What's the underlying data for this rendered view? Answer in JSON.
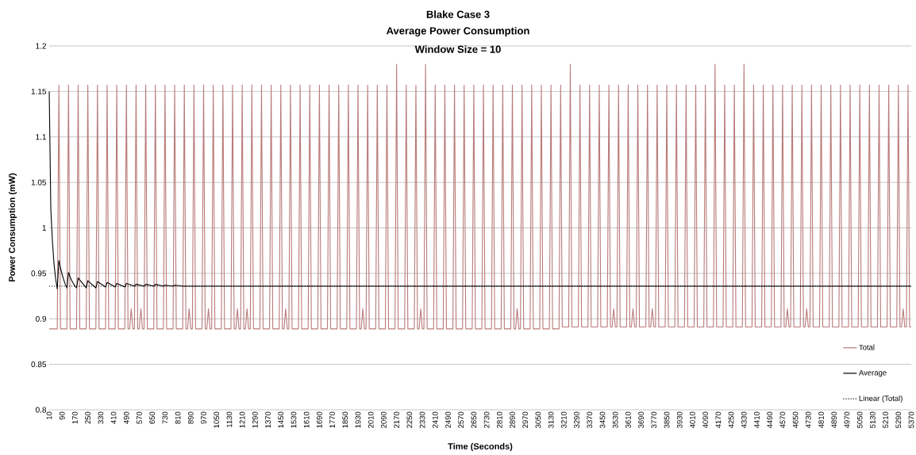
{
  "chart_data": {
    "type": "line",
    "title": "Blake Case 3",
    "subtitle": "Average Power Consumption",
    "annotations": [
      "Window Size = 10"
    ],
    "xlabel": "Time (Seconds)",
    "ylabel": "Power Consumption (mW)",
    "xlim": [
      10,
      5370
    ],
    "ylim": [
      0.8,
      1.2
    ],
    "xticks": [
      10,
      90,
      170,
      250,
      330,
      410,
      490,
      570,
      650,
      730,
      810,
      890,
      970,
      1050,
      1130,
      1210,
      1290,
      1370,
      1450,
      1530,
      1610,
      1690,
      1770,
      1850,
      1930,
      2010,
      2090,
      2170,
      2250,
      2330,
      2410,
      2490,
      2570,
      2650,
      2730,
      2810,
      2890,
      2970,
      3050,
      3130,
      3210,
      3290,
      3370,
      3450,
      3530,
      3610,
      3690,
      3770,
      3850,
      3930,
      4010,
      4090,
      4170,
      4250,
      4330,
      4410,
      4490,
      4570,
      4650,
      4730,
      4810,
      4890,
      4970,
      5050,
      5130,
      5210,
      5290,
      5370
    ],
    "yticks": [
      0.8,
      0.85,
      0.9,
      0.95,
      1,
      1.05,
      1.1,
      1.15,
      1.2
    ],
    "grid": "y",
    "legend": "bottom right",
    "series": [
      {
        "name": "Total",
        "color": "#b97a7a",
        "x": [
          10,
          60,
          70,
          80,
          120,
          130,
          140,
          180,
          190,
          200,
          240,
          250,
          260,
          300,
          310,
          320,
          360,
          370,
          380,
          420,
          430,
          440,
          480,
          490,
          500,
          510,
          520,
          530,
          540,
          550,
          560,
          570,
          580,
          590,
          600,
          610,
          620,
          660,
          670,
          680,
          720,
          730,
          740,
          780,
          790,
          800,
          840,
          850,
          860,
          870,
          880,
          890,
          900,
          910,
          920,
          960,
          970,
          980,
          990,
          1000,
          1010,
          1020,
          1030,
          1040,
          1080,
          1090,
          1100,
          1140,
          1150,
          1160,
          1170,
          1180,
          1190,
          1200,
          1210,
          1220,
          1230,
          1240,
          1250,
          1260,
          1270,
          1280,
          1320,
          1330,
          1340,
          1380,
          1390,
          1400,
          1440,
          1450,
          1460,
          1470,
          1480,
          1490,
          1500,
          1510,
          1520,
          1560,
          1570,
          1580,
          1620,
          1630,
          1640,
          1680,
          1690,
          1700,
          1740,
          1750,
          1760,
          1800,
          1810,
          1820,
          1860,
          1870,
          1880,
          1920,
          1930,
          1940,
          1950,
          1960,
          1970,
          1980,
          1990,
          2000,
          2040,
          2050,
          2060,
          2100,
          2110,
          2120,
          2160,
          2170,
          2180,
          2220,
          2230,
          2240,
          2280,
          2290,
          2300,
          2310,
          2320,
          2330,
          2340,
          2350,
          2360,
          2400,
          2410,
          2420,
          2460,
          2470,
          2480,
          2520,
          2530,
          2540,
          2580,
          2590,
          2600,
          2640,
          2650,
          2660,
          2700,
          2710,
          2720,
          2760,
          2770,
          2780,
          2820,
          2830,
          2840,
          2880,
          2890,
          2900,
          2910,
          2920,
          2930,
          2940,
          2950,
          2960,
          3000,
          3010,
          3020,
          3060,
          3070,
          3080,
          3120,
          3130,
          3140,
          3180,
          3190,
          3200,
          3240,
          3250,
          3260,
          3300,
          3310,
          3320,
          3360,
          3370,
          3380,
          3420,
          3430,
          3440,
          3480,
          3490,
          3500,
          3510,
          3520,
          3530,
          3540,
          3550,
          3560,
          3600,
          3610,
          3620,
          3630,
          3640,
          3650,
          3660,
          3670,
          3680,
          3720,
          3730,
          3740,
          3750,
          3760,
          3770,
          3780,
          3790,
          3800,
          3840,
          3850,
          3860,
          3900,
          3910,
          3920,
          3960,
          3970,
          3980,
          4020,
          4030,
          4040,
          4080,
          4090,
          4100,
          4140,
          4150,
          4160,
          4200,
          4210,
          4220,
          4260,
          4270,
          4280,
          4320,
          4330,
          4340,
          4380,
          4390,
          4400,
          4440,
          4450,
          4460,
          4500,
          4510,
          4520,
          4560,
          4570,
          4580,
          4590,
          4600,
          4610,
          4620,
          4630,
          4640,
          4680,
          4690,
          4700,
          4710,
          4720,
          4730,
          4740,
          4750,
          4760,
          4800,
          4810,
          4820,
          4860,
          4870,
          4880,
          4920,
          4930,
          4940,
          4980,
          4990,
          5000,
          5040,
          5050,
          5060,
          5100,
          5110,
          5120,
          5160,
          5170,
          5180,
          5220,
          5230,
          5240,
          5280,
          5290,
          5300,
          5310,
          5320,
          5330,
          5340,
          5350,
          5360,
          5370
        ],
        "values": [
          0.889,
          0.889,
          1.157,
          0.889,
          0.889,
          1.157,
          0.889,
          0.889,
          1.157,
          0.889,
          0.889,
          1.157,
          0.889,
          0.889,
          1.157,
          0.889,
          0.889,
          1.157,
          0.889,
          0.889,
          1.157,
          0.889,
          0.889,
          1.157,
          0.889,
          0.889,
          0.911,
          0.889,
          0.889,
          1.157,
          0.889,
          0.889,
          0.911,
          0.889,
          0.889,
          1.157,
          0.889,
          0.889,
          1.157,
          0.889,
          0.889,
          1.157,
          0.889,
          0.889,
          1.157,
          0.889,
          0.889,
          1.157,
          0.889,
          0.889,
          0.911,
          0.889,
          0.889,
          1.157,
          0.889,
          0.889,
          1.157,
          0.889,
          0.889,
          0.911,
          0.889,
          0.889,
          1.157,
          0.889,
          0.889,
          1.157,
          0.889,
          0.889,
          1.157,
          0.889,
          0.889,
          0.911,
          0.889,
          0.889,
          1.157,
          0.889,
          0.889,
          0.911,
          0.889,
          0.889,
          1.157,
          0.889,
          0.889,
          1.157,
          0.889,
          0.889,
          1.157,
          0.889,
          0.889,
          1.157,
          0.889,
          0.889,
          0.911,
          0.889,
          0.889,
          1.157,
          0.889,
          0.889,
          1.157,
          0.889,
          0.889,
          1.157,
          0.889,
          0.889,
          1.157,
          0.889,
          0.889,
          1.157,
          0.889,
          0.889,
          1.157,
          0.889,
          0.889,
          1.157,
          0.889,
          0.889,
          1.157,
          0.889,
          0.889,
          0.911,
          0.889,
          0.889,
          1.157,
          0.889,
          0.889,
          1.157,
          0.889,
          0.889,
          1.157,
          0.889,
          0.889,
          1.18,
          0.889,
          0.889,
          1.157,
          0.889,
          0.889,
          1.157,
          0.889,
          0.889,
          0.911,
          0.889,
          0.889,
          1.18,
          0.889,
          0.889,
          1.157,
          0.889,
          0.889,
          1.157,
          0.889,
          0.889,
          1.157,
          0.889,
          0.889,
          1.157,
          0.889,
          0.889,
          1.157,
          0.889,
          0.889,
          1.157,
          0.889,
          0.889,
          1.157,
          0.889,
          0.889,
          1.157,
          0.889,
          0.889,
          1.157,
          0.889,
          0.889,
          0.911,
          0.889,
          0.889,
          1.157,
          0.889,
          0.889,
          1.157,
          0.889,
          0.889,
          1.157,
          0.889,
          0.889,
          1.157,
          0.889,
          0.889,
          1.157,
          0.891,
          0.891,
          1.18,
          0.891,
          0.891,
          1.157,
          0.891,
          0.891,
          1.157,
          0.891,
          0.891,
          1.157,
          0.891,
          0.891,
          1.157,
          0.891,
          0.891,
          0.911,
          0.891,
          0.891,
          1.157,
          0.891,
          0.891,
          1.157,
          0.891,
          0.891,
          0.911,
          0.891,
          0.891,
          1.157,
          0.891,
          0.891,
          1.157,
          0.891,
          0.891,
          0.911,
          0.891,
          0.891,
          1.157,
          0.891,
          0.891,
          1.157,
          0.891,
          0.891,
          1.157,
          0.891,
          0.891,
          1.157,
          0.891,
          0.891,
          1.157,
          0.891,
          0.891,
          1.157,
          0.891,
          0.891,
          1.18,
          0.891,
          0.891,
          1.157,
          0.891,
          0.891,
          1.157,
          0.891,
          0.891,
          1.18,
          0.891,
          0.891,
          1.157,
          0.891,
          0.891,
          1.157,
          0.891,
          0.891,
          1.157,
          0.891,
          0.891,
          1.157,
          0.891,
          0.891,
          0.911,
          0.891,
          0.891,
          1.157,
          0.891,
          0.891,
          1.157,
          0.891,
          0.891,
          0.911,
          0.891,
          0.891,
          1.157,
          0.891,
          0.891,
          1.157,
          0.891,
          0.891,
          1.157,
          0.891,
          0.891,
          1.157,
          0.891,
          0.891,
          1.157,
          0.891,
          0.891,
          1.157,
          0.891,
          0.891,
          1.157,
          0.891,
          0.891,
          1.157,
          0.891,
          0.891,
          1.157,
          0.891,
          0.891,
          1.157,
          0.891,
          0.891,
          0.911,
          0.891,
          0.891,
          1.157,
          0.891,
          0.891
        ]
      },
      {
        "name": "Average",
        "color": "#000000",
        "x": [
          10,
          20,
          30,
          40,
          50,
          60,
          70,
          80,
          90,
          100,
          110,
          120,
          130,
          140,
          150,
          160,
          170,
          180,
          190,
          240,
          250,
          300,
          310,
          360,
          370,
          420,
          430,
          480,
          490,
          540,
          550,
          600,
          610,
          660,
          670,
          720,
          730,
          780,
          790,
          840,
          1000,
          2000,
          3000,
          4000,
          5370
        ],
        "values": [
          1.15,
          1.02,
          0.985,
          0.96,
          0.944,
          0.933,
          0.964,
          0.956,
          0.949,
          0.943,
          0.938,
          0.934,
          0.951,
          0.946,
          0.942,
          0.939,
          0.936,
          0.934,
          0.945,
          0.934,
          0.942,
          0.934,
          0.941,
          0.935,
          0.94,
          0.935,
          0.939,
          0.935,
          0.939,
          0.936,
          0.938,
          0.936,
          0.938,
          0.936,
          0.938,
          0.936,
          0.937,
          0.936,
          0.937,
          0.936,
          0.936,
          0.936,
          0.936,
          0.936,
          0.936
        ]
      },
      {
        "name": "Linear (Total)",
        "color": "#000000",
        "line_style": "dotted",
        "x": [
          10,
          5370
        ],
        "values": [
          0.936,
          0.936
        ]
      }
    ]
  }
}
